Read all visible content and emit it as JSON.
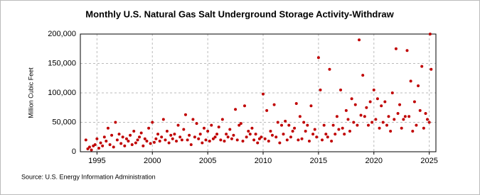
{
  "chart_data": {
    "type": "scatter",
    "title": "Monthly U.S. Natural Gas Salt Underground Storage Activity-Withdraw",
    "y_label": "Million Cubic Feet",
    "source": "Source: U.S. Energy Information Administration",
    "color": "#c00000",
    "grid": true,
    "xlim": [
      1993.5,
      2025.6
    ],
    "ylim": [
      0,
      200000
    ],
    "xticks": [
      1995,
      2000,
      2005,
      2010,
      2015,
      2020,
      2025
    ],
    "yticks": [
      0,
      {
        "value": 50000,
        "label": "50,000"
      },
      {
        "value": 100000,
        "label": "100,000"
      },
      {
        "value": 150000,
        "label": "150,000"
      },
      {
        "value": 200000,
        "label": "200,000"
      }
    ],
    "x": [
      1994.0,
      1994.17,
      1994.33,
      1994.5,
      1994.67,
      1994.83,
      1995.0,
      1995.17,
      1995.33,
      1995.5,
      1995.67,
      1995.83,
      1996.0,
      1996.17,
      1996.33,
      1996.5,
      1996.67,
      1996.83,
      1997.0,
      1997.17,
      1997.33,
      1997.5,
      1997.67,
      1997.83,
      1998.0,
      1998.17,
      1998.33,
      1998.5,
      1998.67,
      1998.83,
      1999.0,
      1999.17,
      1999.33,
      1999.5,
      1999.67,
      1999.83,
      2000.0,
      2000.17,
      2000.33,
      2000.5,
      2000.67,
      2000.83,
      2001.0,
      2001.17,
      2001.33,
      2001.5,
      2001.67,
      2001.83,
      2002.0,
      2002.17,
      2002.33,
      2002.5,
      2002.67,
      2002.83,
      2003.0,
      2003.17,
      2003.33,
      2003.5,
      2003.67,
      2003.83,
      2004.0,
      2004.17,
      2004.33,
      2004.5,
      2004.67,
      2004.83,
      2005.0,
      2005.17,
      2005.33,
      2005.5,
      2005.67,
      2005.83,
      2006.0,
      2006.17,
      2006.33,
      2006.5,
      2006.67,
      2006.83,
      2007.0,
      2007.17,
      2007.33,
      2007.5,
      2007.67,
      2007.83,
      2008.0,
      2008.17,
      2008.33,
      2008.5,
      2008.67,
      2008.83,
      2009.0,
      2009.17,
      2009.33,
      2009.5,
      2009.67,
      2009.83,
      2010.0,
      2010.17,
      2010.33,
      2010.5,
      2010.67,
      2010.83,
      2011.0,
      2011.17,
      2011.33,
      2011.5,
      2011.67,
      2011.83,
      2012.0,
      2012.17,
      2012.33,
      2012.5,
      2012.67,
      2012.83,
      2013.0,
      2013.17,
      2013.33,
      2013.5,
      2013.67,
      2013.83,
      2014.0,
      2014.17,
      2014.33,
      2014.5,
      2014.67,
      2014.83,
      2015.0,
      2015.17,
      2015.33,
      2015.5,
      2015.67,
      2015.83,
      2016.0,
      2016.17,
      2016.33,
      2016.5,
      2016.67,
      2016.83,
      2017.0,
      2017.17,
      2017.33,
      2017.5,
      2017.67,
      2017.83,
      2018.0,
      2018.17,
      2018.33,
      2018.5,
      2018.67,
      2018.83,
      2019.0,
      2019.17,
      2019.33,
      2019.5,
      2019.67,
      2019.83,
      2020.0,
      2020.17,
      2020.33,
      2020.5,
      2020.67,
      2020.83,
      2021.0,
      2021.17,
      2021.33,
      2021.5,
      2021.67,
      2021.83,
      2022.0,
      2022.17,
      2022.33,
      2022.5,
      2022.67,
      2022.83,
      2023.0,
      2023.17,
      2023.33,
      2023.5,
      2023.67,
      2023.83,
      2024.0,
      2024.17,
      2024.33,
      2024.5,
      2024.67,
      2024.83,
      2025.0,
      2025.08,
      2025.17
    ],
    "values": [
      20000,
      5000,
      8000,
      3000,
      10000,
      12000,
      22000,
      6000,
      15000,
      10000,
      25000,
      18000,
      40000,
      12000,
      28000,
      8000,
      50000,
      20000,
      30000,
      14000,
      25000,
      10000,
      22000,
      18000,
      28000,
      12000,
      35000,
      15000,
      20000,
      25000,
      32000,
      10000,
      22000,
      18000,
      40000,
      14000,
      50000,
      16000,
      22000,
      30000,
      18000,
      25000,
      55000,
      20000,
      35000,
      15000,
      28000,
      22000,
      30000,
      18000,
      45000,
      25000,
      20000,
      38000,
      63000,
      20000,
      28000,
      12000,
      55000,
      25000,
      48000,
      22000,
      30000,
      15000,
      40000,
      20000,
      35000,
      18000,
      45000,
      22000,
      25000,
      30000,
      42000,
      20000,
      55000,
      18000,
      30000,
      25000,
      38000,
      22000,
      28000,
      72000,
      20000,
      45000,
      48000,
      18000,
      78000,
      25000,
      35000,
      30000,
      40000,
      20000,
      30000,
      15000,
      22000,
      25000,
      98000,
      22000,
      70000,
      18000,
      35000,
      28000,
      80000,
      25000,
      50000,
      15000,
      45000,
      30000,
      52000,
      20000,
      45000,
      25000,
      35000,
      40000,
      82000,
      20000,
      60000,
      22000,
      50000,
      35000,
      45000,
      18000,
      78000,
      30000,
      38000,
      25000,
      160000,
      105000,
      20000,
      45000,
      30000,
      25000,
      140000,
      18000,
      45000,
      30000,
      60000,
      38000,
      105000,
      40000,
      30000,
      70000,
      55000,
      35000,
      90000,
      50000,
      80000,
      45000,
      190000,
      62000,
      130000,
      60000,
      75000,
      45000,
      85000,
      50000,
      105000,
      55000,
      90000,
      40000,
      78000,
      50000,
      85000,
      45000,
      60000,
      35000,
      100000,
      55000,
      175000,
      65000,
      80000,
      40000,
      55000,
      60000,
      172000,
      60000,
      120000,
      35000,
      85000,
      45000,
      112000,
      70000,
      145000,
      40000,
      65000,
      55000,
      50000,
      200000,
      140000
    ]
  }
}
